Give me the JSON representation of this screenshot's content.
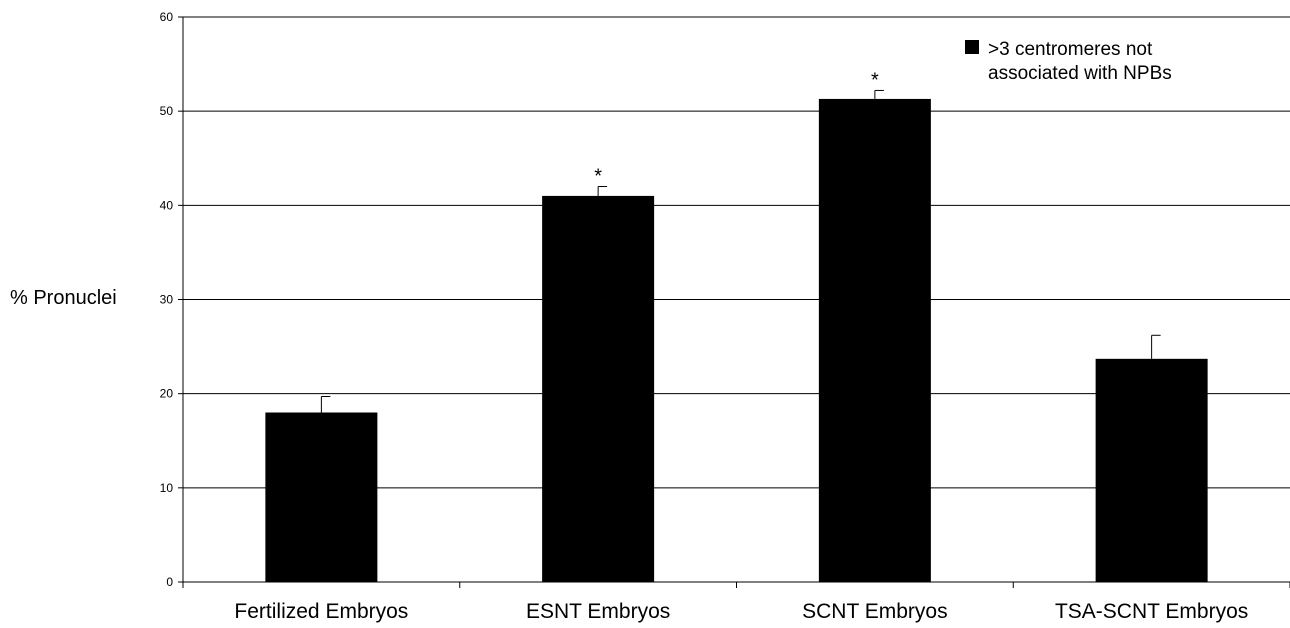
{
  "chart_data": {
    "type": "bar",
    "title": "",
    "xlabel": "",
    "ylabel": "% Pronuclei",
    "ylim": [
      0,
      60
    ],
    "yticks": [
      0,
      10,
      20,
      30,
      40,
      50,
      60
    ],
    "grid": true,
    "legend_position": "top-right",
    "categories": [
      "Fertilized Embryos",
      "ESNT Embryos",
      "SCNT Embryos",
      "TSA-SCNT Embryos"
    ],
    "series": [
      {
        "name": ">3 centromeres not associated with NPBs",
        "legend_lines": [
          ">3 centromeres not",
          "associated with NPBs"
        ],
        "color": "#000000",
        "values": [
          18,
          41,
          51.3,
          23.7
        ],
        "error_upper": [
          1.7,
          1.0,
          0.9,
          2.5
        ]
      }
    ],
    "annotations": [
      "",
      "*",
      "*",
      ""
    ]
  }
}
